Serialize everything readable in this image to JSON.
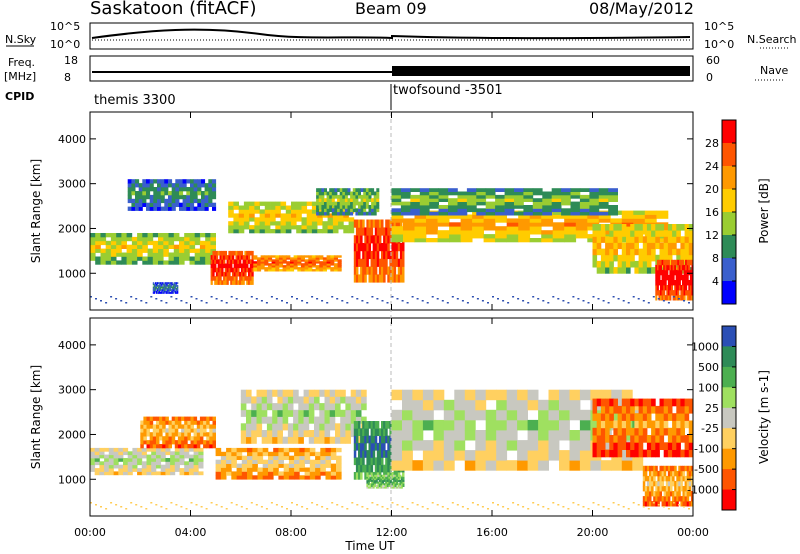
{
  "header": {
    "station": "Saskatoon (fitACF)",
    "beam": "Beam 09",
    "date": "08/May/2012"
  },
  "top_panels": {
    "nsky_label": "N.Sky",
    "nsky_ticks": [
      "10^5",
      "10^0"
    ],
    "nsearch_label": "N.Search",
    "nsearch_ticks": [
      "10^5",
      "10^0"
    ],
    "freq_label": "Freq.",
    "freq_unit": "[MHz]",
    "freq_ticks": [
      "18",
      "8"
    ],
    "nave_label": "Nave",
    "nave_ticks": [
      "60",
      "0"
    ],
    "cpid_label": "CPID",
    "cpid_programs": [
      {
        "name": "themis 3300",
        "start_hour": 0
      },
      {
        "name": "twofsound -3501",
        "start_hour": 12
      }
    ]
  },
  "time_axis": {
    "label": "Time UT",
    "ticks": [
      "00:00",
      "04:00",
      "08:00",
      "12:00",
      "16:00",
      "20:00",
      "00:00"
    ]
  },
  "chart_data": [
    {
      "type": "heatmap",
      "ylabel": "Slant Range [km]",
      "yticks": [
        "4000",
        "3000",
        "2000",
        "1000"
      ],
      "ylim": [
        180,
        4600
      ],
      "xlim": [
        0,
        24
      ],
      "colorbar_label": "Power [dB]",
      "colorbar_ticks": [
        "28",
        "24",
        "20",
        "16",
        "12",
        "8",
        "4"
      ],
      "colorbar_colors": [
        "#ff0000",
        "#ff5500",
        "#ff9900",
        "#ffcc00",
        "#9acd32",
        "#2e8b57",
        "#3a5fcd",
        "#0000ff"
      ],
      "regions": [
        {
          "t0": 0.0,
          "t1": 5.0,
          "r0": 1200,
          "r1": 1900,
          "level": 0.45
        },
        {
          "t0": 4.8,
          "t1": 6.5,
          "r0": 750,
          "r1": 1500,
          "level": 0.9
        },
        {
          "t0": 6.5,
          "t1": 10.0,
          "r0": 1050,
          "r1": 1400,
          "level": 0.75
        },
        {
          "t0": 5.5,
          "t1": 10.5,
          "r0": 1900,
          "r1": 2600,
          "level": 0.5
        },
        {
          "t0": 1.5,
          "t1": 5.0,
          "r0": 2400,
          "r1": 3100,
          "level": 0.2
        },
        {
          "t0": 9.0,
          "t1": 11.5,
          "r0": 2300,
          "r1": 2900,
          "level": 0.35
        },
        {
          "t0": 10.5,
          "t1": 12.5,
          "r0": 800,
          "r1": 2200,
          "level": 0.88
        },
        {
          "t0": 12.0,
          "t1": 23.0,
          "r0": 1700,
          "r1": 2400,
          "level": 0.6
        },
        {
          "t0": 12.0,
          "t1": 21.0,
          "r0": 2300,
          "r1": 2900,
          "level": 0.3
        },
        {
          "t0": 20.0,
          "t1": 24.0,
          "r0": 1000,
          "r1": 2100,
          "level": 0.55
        },
        {
          "t0": 22.5,
          "t1": 24.0,
          "r0": 400,
          "r1": 1300,
          "level": 0.95
        },
        {
          "t0": 2.5,
          "t1": 3.5,
          "r0": 550,
          "r1": 800,
          "level": 0.15
        }
      ]
    },
    {
      "type": "heatmap",
      "ylabel": "Slant Range [km]",
      "yticks": [
        "4000",
        "3000",
        "2000",
        "1000"
      ],
      "ylim": [
        180,
        4600
      ],
      "xlim": [
        0,
        24
      ],
      "colorbar_label": "Velocity [m s-1]",
      "colorbar_ticks": [
        "1000",
        "500",
        "100",
        "25",
        "-25",
        "-100",
        "-500",
        "-1000"
      ],
      "colorbar_colors": [
        "#2b4fb5",
        "#2e8b57",
        "#4caf50",
        "#9fe060",
        "#c8c8c0",
        "#ffd060",
        "#ff9900",
        "#ff5500",
        "#ff0000"
      ],
      "regions": [
        {
          "t0": 0.0,
          "t1": 4.5,
          "r0": 1100,
          "r1": 1700,
          "level": 0.5
        },
        {
          "t0": 2.0,
          "t1": 5.0,
          "r0": 1700,
          "r1": 2400,
          "level": 0.25
        },
        {
          "t0": 5.0,
          "t1": 10.0,
          "r0": 1000,
          "r1": 1700,
          "level": 0.3
        },
        {
          "t0": 6.0,
          "t1": 11.0,
          "r0": 1800,
          "r1": 3000,
          "level": 0.5
        },
        {
          "t0": 10.5,
          "t1": 12.5,
          "r0": 1000,
          "r1": 2300,
          "level": 0.85
        },
        {
          "t0": 11.0,
          "t1": 12.5,
          "r0": 800,
          "r1": 1100,
          "level": 0.7
        },
        {
          "t0": 12.0,
          "t1": 22.0,
          "r0": 1200,
          "r1": 3000,
          "level": 0.5
        },
        {
          "t0": 20.0,
          "t1": 24.0,
          "r0": 1500,
          "r1": 2800,
          "level": 0.15
        },
        {
          "t0": 22.0,
          "t1": 24.0,
          "r0": 400,
          "r1": 1300,
          "level": 0.25
        }
      ]
    }
  ]
}
